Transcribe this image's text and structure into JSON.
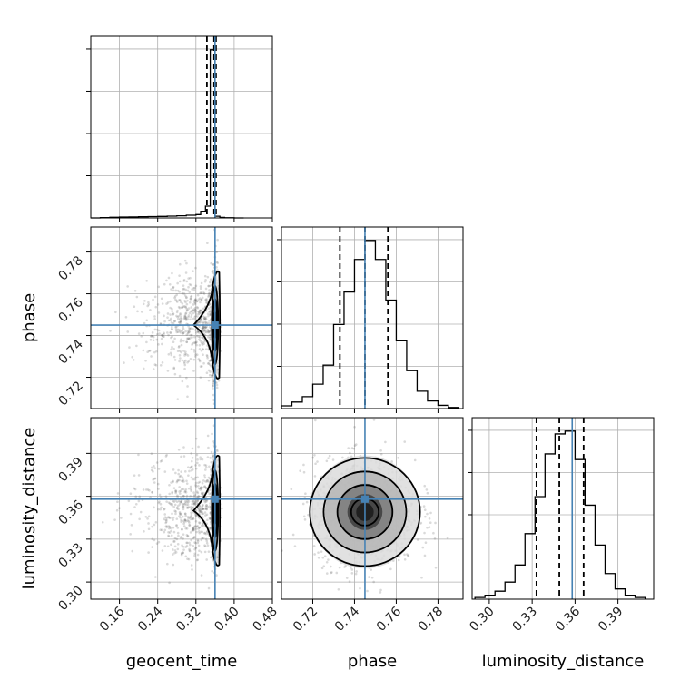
{
  "chart_data": {
    "type": "corner",
    "parameters": [
      "geocent_time",
      "phase",
      "luminosity_distance"
    ],
    "truths": {
      "geocent_time": 0.36,
      "phase": 0.745,
      "luminosity_distance": 0.358
    },
    "quantiles": {
      "geocent_time": [
        0.343,
        0.358,
        0.362
      ],
      "phase": [
        0.733,
        0.745,
        0.756
      ],
      "luminosity_distance": [
        0.333,
        0.349,
        0.366
      ]
    },
    "axes": {
      "geocent_time": {
        "lim": [
          0.1,
          0.48
        ],
        "ticks": [
          0.16,
          0.24,
          0.32,
          0.4,
          0.48
        ],
        "ticklabels": [
          "0.16",
          "0.24",
          "0.32",
          "0.40",
          "0.48"
        ]
      },
      "phase": {
        "lim": [
          0.705,
          0.792
        ],
        "ticks": [
          0.72,
          0.74,
          0.76,
          0.78
        ],
        "ticklabels": [
          "0.72",
          "0.74",
          "0.76",
          "0.78"
        ]
      },
      "luminosity_distance": {
        "lim": [
          0.288,
          0.415
        ],
        "ticks": [
          0.3,
          0.33,
          0.36,
          0.39
        ],
        "ticklabels": [
          "0.30",
          "0.33",
          "0.36",
          "0.39"
        ]
      }
    },
    "histograms": {
      "geocent_time": {
        "bins": [
          0.1,
          0.12,
          0.14,
          0.16,
          0.18,
          0.2,
          0.22,
          0.24,
          0.26,
          0.28,
          0.3,
          0.32,
          0.33,
          0.34,
          0.35,
          0.36,
          0.37,
          0.38,
          0.4,
          0.42
        ],
        "counts": [
          0,
          2,
          4,
          5,
          6,
          7,
          8,
          9,
          11,
          13,
          16,
          20,
          40,
          70,
          1000,
          10,
          3,
          1,
          0
        ]
      },
      "phase": {
        "bins": [
          0.705,
          0.71,
          0.715,
          0.72,
          0.725,
          0.73,
          0.735,
          0.74,
          0.745,
          0.75,
          0.755,
          0.76,
          0.765,
          0.77,
          0.775,
          0.78,
          0.785,
          0.79
        ],
        "counts": [
          5,
          12,
          22,
          45,
          80,
          155,
          215,
          275,
          310,
          275,
          200,
          125,
          70,
          32,
          14,
          6,
          2
        ]
      },
      "luminosity_distance": {
        "bins": [
          0.29,
          0.297,
          0.304,
          0.311,
          0.318,
          0.325,
          0.332,
          0.339,
          0.346,
          0.353,
          0.36,
          0.367,
          0.374,
          0.381,
          0.388,
          0.395,
          0.402,
          0.409
        ],
        "counts": [
          3,
          7,
          14,
          30,
          60,
          115,
          180,
          255,
          290,
          295,
          245,
          165,
          95,
          45,
          18,
          7,
          3
        ]
      }
    },
    "panels_2d": [
      {
        "x": "geocent_time",
        "y": "phase",
        "center": [
          0.36,
          0.745
        ],
        "spread_x_core": 0.004,
        "spread_x_tail": 0.07,
        "spread_y": 0.012
      },
      {
        "x": "geocent_time",
        "y": "luminosity_distance",
        "center": [
          0.36,
          0.35
        ],
        "spread_x_core": 0.004,
        "spread_x_tail": 0.07,
        "spread_y": 0.018
      },
      {
        "x": "phase",
        "y": "luminosity_distance",
        "center": [
          0.745,
          0.349
        ],
        "spread_x": 0.012,
        "spread_y": 0.018
      }
    ]
  }
}
